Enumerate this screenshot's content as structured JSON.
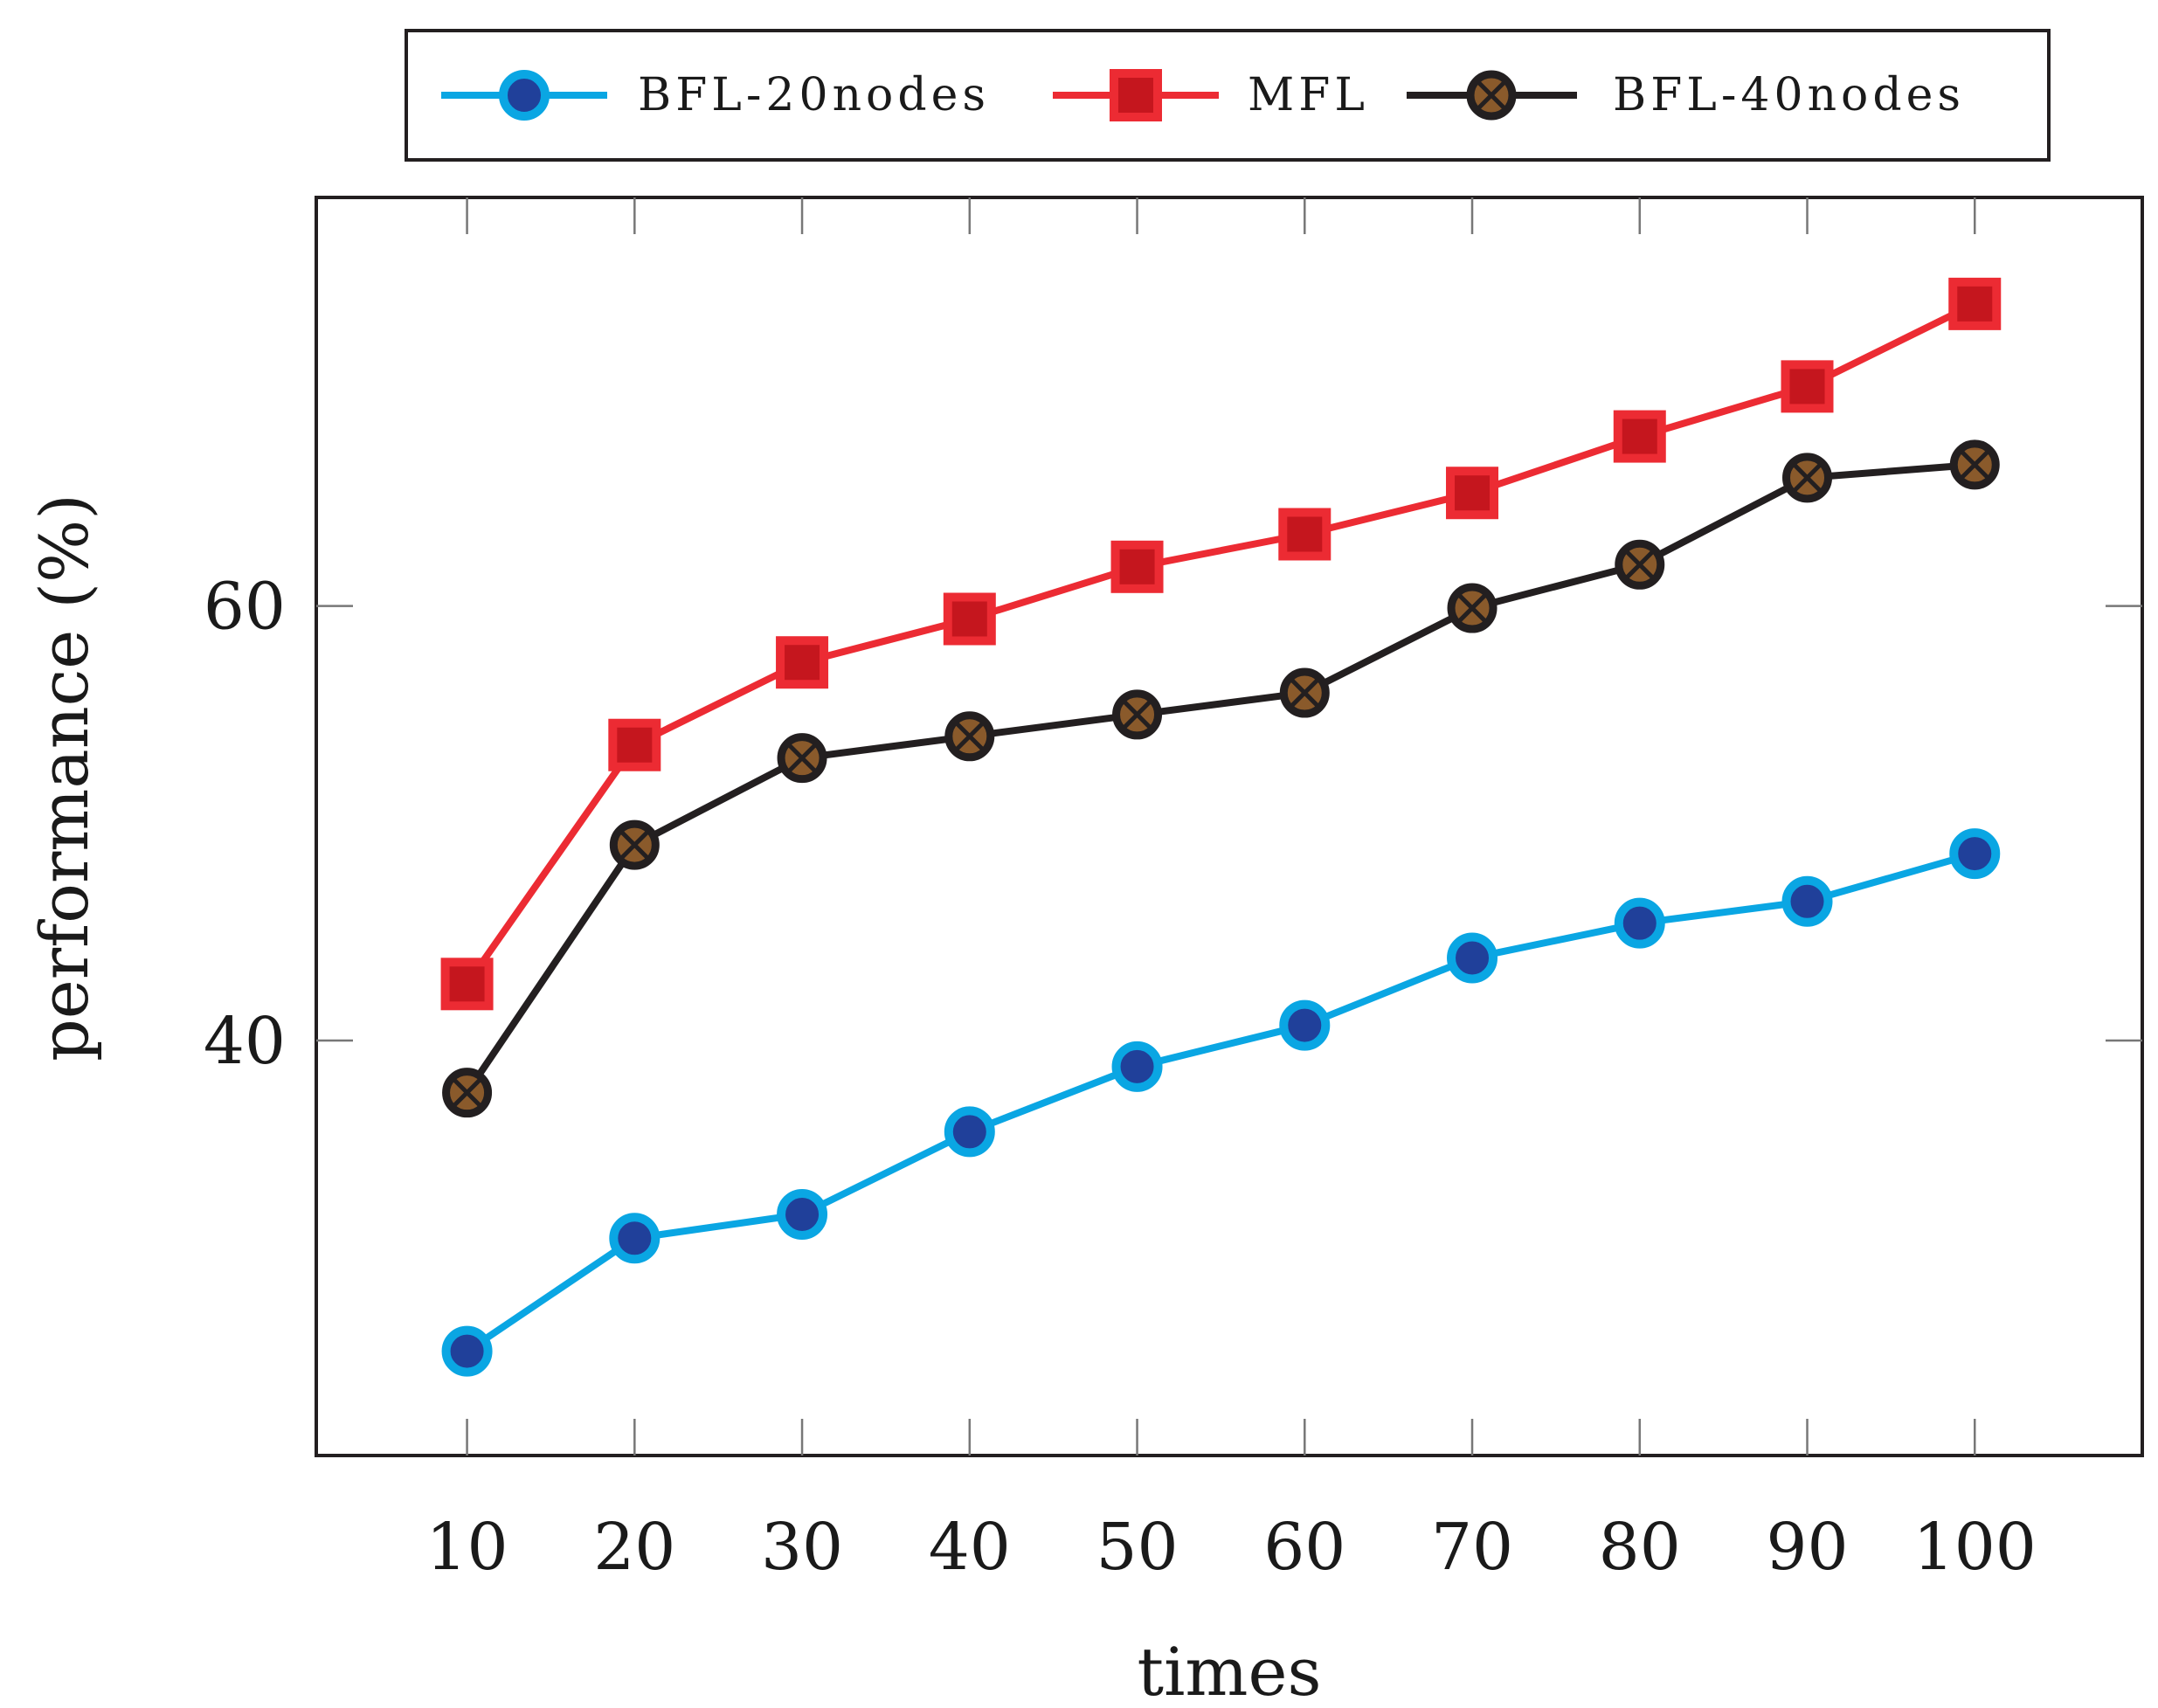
{
  "chart_data": {
    "type": "line",
    "title": "",
    "xlabel": "times",
    "ylabel": "performance (%)",
    "x": [
      10,
      20,
      30,
      40,
      50,
      60,
      70,
      80,
      90,
      100
    ],
    "xticks": [
      "10",
      "20",
      "30",
      "40",
      "50",
      "60",
      "70",
      "80",
      "90",
      "100"
    ],
    "yticks": [
      "40",
      "60"
    ],
    "ytick_values": [
      40,
      60
    ],
    "xlim": [
      1,
      110
    ],
    "ylim": [
      20.9,
      78.8
    ],
    "grid": false,
    "legend_position": "top, outside",
    "series": [
      {
        "name": "BFL-20nodes",
        "marker": "circle",
        "color": "#0aa6e3",
        "marker_fill": "#20409a",
        "values": [
          25.7,
          30.9,
          32.0,
          35.8,
          38.8,
          40.7,
          43.8,
          45.4,
          46.4,
          48.6
        ]
      },
      {
        "name": "MFL",
        "marker": "square",
        "color": "#ec2b33",
        "marker_fill": "#c5161e",
        "values": [
          42.6,
          53.6,
          57.4,
          59.4,
          61.8,
          63.3,
          65.2,
          67.8,
          70.1,
          73.9
        ]
      },
      {
        "name": "BFL-40nodes",
        "marker": "otimes",
        "color": "#231f20",
        "marker_fill": "#8a5a2b",
        "values": [
          37.6,
          49.0,
          53.0,
          54.0,
          55.0,
          56.0,
          59.9,
          61.9,
          65.9,
          66.5
        ]
      }
    ]
  }
}
